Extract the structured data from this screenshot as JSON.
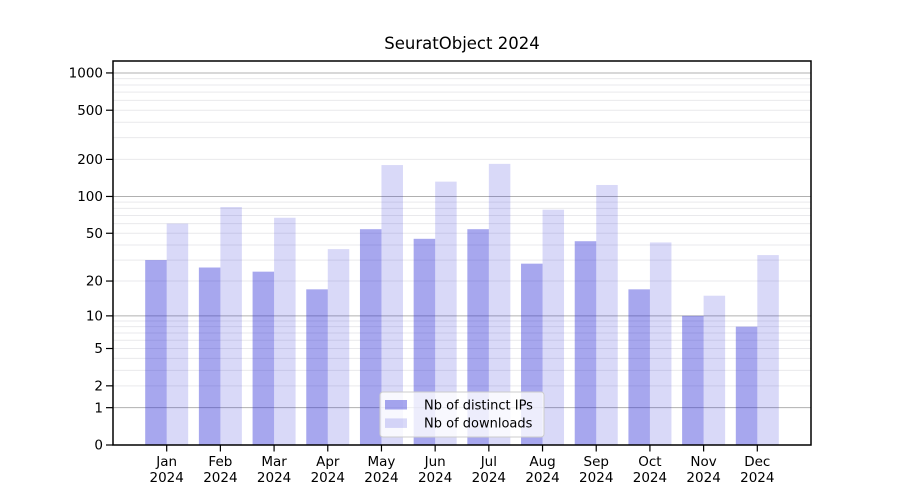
{
  "chart_data": {
    "type": "bar",
    "title": "SeuratObject 2024",
    "x_months": [
      "Jan",
      "Feb",
      "Mar",
      "Apr",
      "May",
      "Jun",
      "Jul",
      "Aug",
      "Sep",
      "Oct",
      "Nov",
      "Dec"
    ],
    "x_year": "2024",
    "series": [
      {
        "name": "Nb of distinct IPs",
        "color": "rgba(45,45,215,0.42)",
        "values": [
          30,
          26,
          24,
          17,
          54,
          45,
          54,
          28,
          43,
          17,
          10,
          8
        ]
      },
      {
        "name": "Nb of downloads",
        "color": "rgba(45,45,215,0.18)",
        "values": [
          60,
          82,
          67,
          37,
          180,
          132,
          184,
          78,
          124,
          42,
          15,
          33
        ]
      }
    ],
    "yscale": "log1p",
    "y_tick_labels": [
      0,
      1,
      2,
      5,
      10,
      20,
      50,
      100,
      200,
      500,
      1000
    ],
    "y_major_gridlines": [
      1,
      10,
      100,
      1000
    ],
    "ylim": [
      0,
      1270
    ],
    "grid": "on",
    "legend": {
      "position": "lower-center",
      "entries": [
        "Nb of distinct IPs",
        "Nb of downloads"
      ]
    },
    "colors": {
      "major_grid": "#b0b0b0",
      "minor_grid": "#e9e9ec",
      "axis": "#000000",
      "legend_border": "#cccccc",
      "legend_bg": "rgba(255,255,255,0.8)"
    }
  }
}
